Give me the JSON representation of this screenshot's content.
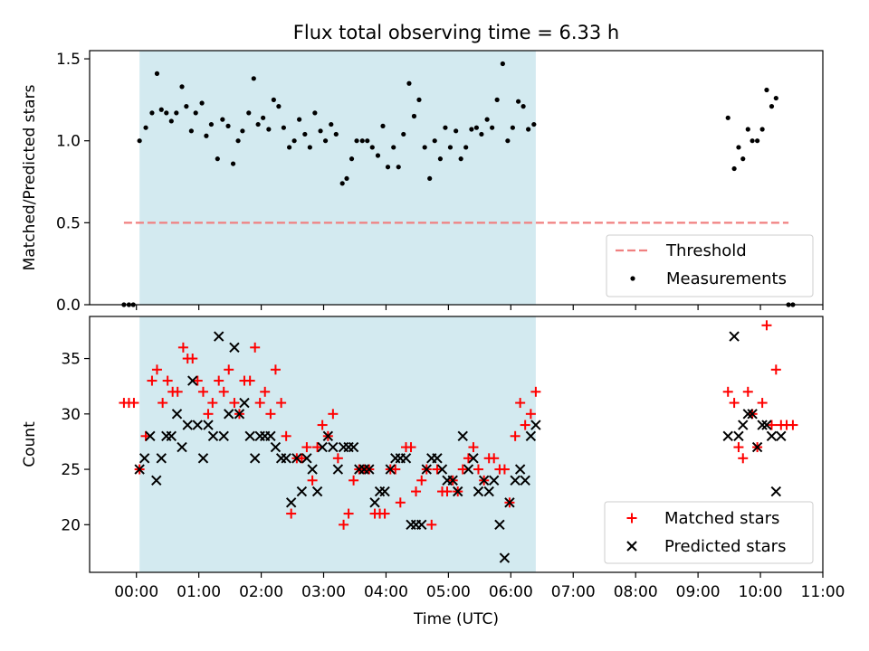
{
  "chart_data": {
    "title": "Flux total observing time = 6.33 h",
    "xlabel": "Time (UTC)",
    "x_unit": "hours (UTC)",
    "xlim": [
      -0.75,
      11.0
    ],
    "x_ticks": [
      {
        "value": 0,
        "label": "00:00"
      },
      {
        "value": 1,
        "label": "01:00"
      },
      {
        "value": 2,
        "label": "02:00"
      },
      {
        "value": 3,
        "label": "03:00"
      },
      {
        "value": 4,
        "label": "04:00"
      },
      {
        "value": 5,
        "label": "05:00"
      },
      {
        "value": 6,
        "label": "06:00"
      },
      {
        "value": 7,
        "label": "07:00"
      },
      {
        "value": 8,
        "label": "08:00"
      },
      {
        "value": 9,
        "label": "09:00"
      },
      {
        "value": 10,
        "label": "10:00"
      },
      {
        "value": 11,
        "label": "11:00"
      }
    ],
    "observing_window": {
      "start": 0.05,
      "end": 6.4,
      "color": "#d3eaf0"
    },
    "panels": [
      {
        "type": "scatter",
        "ylabel": "Matched/Predicted stars",
        "ylim": [
          0,
          1.55
        ],
        "y_ticks": [
          {
            "value": 0,
            "label": "0.0"
          },
          {
            "value": 0.5,
            "label": "0.5"
          },
          {
            "value": 1.0,
            "label": "1.0"
          },
          {
            "value": 1.5,
            "label": "1.5"
          }
        ],
        "threshold": {
          "name": "Threshold",
          "value": 0.5,
          "x_range": [
            -0.2,
            10.45
          ],
          "color": "#f08080"
        },
        "legend": {
          "position": "lower-right",
          "entries": [
            "Threshold",
            "Measurements"
          ]
        },
        "series": [
          {
            "name": "Measurements",
            "marker": "dot",
            "color": "#000000",
            "x": [
              -0.2,
              -0.12,
              -0.05,
              0.05,
              0.15,
              0.25,
              0.33,
              0.4,
              0.48,
              0.56,
              0.64,
              0.73,
              0.8,
              0.88,
              0.95,
              1.05,
              1.12,
              1.2,
              1.3,
              1.38,
              1.47,
              1.55,
              1.63,
              1.7,
              1.8,
              1.88,
              1.95,
              2.03,
              2.12,
              2.2,
              2.28,
              2.36,
              2.45,
              2.53,
              2.61,
              2.7,
              2.78,
              2.86,
              2.95,
              3.03,
              3.12,
              3.2,
              3.3,
              3.37,
              3.45,
              3.53,
              3.62,
              3.7,
              3.78,
              3.87,
              3.95,
              4.03,
              4.12,
              4.2,
              4.28,
              4.37,
              4.45,
              4.53,
              4.62,
              4.7,
              4.78,
              4.87,
              4.95,
              5.03,
              5.12,
              5.2,
              5.28,
              5.37,
              5.45,
              5.53,
              5.62,
              5.7,
              5.78,
              5.87,
              5.95,
              6.03,
              6.12,
              6.2,
              6.28,
              6.37,
              9.48,
              9.58,
              9.65,
              9.72,
              9.8,
              9.87,
              9.95,
              10.03,
              10.1,
              10.18,
              10.25,
              10.45,
              10.52
            ],
            "y": [
              0.0,
              0.0,
              0.0,
              1.0,
              1.08,
              1.17,
              1.41,
              1.19,
              1.17,
              1.12,
              1.17,
              1.33,
              1.21,
              1.06,
              1.17,
              1.23,
              1.03,
              1.1,
              0.89,
              1.13,
              1.09,
              0.86,
              1.0,
              1.06,
              1.17,
              1.38,
              1.1,
              1.14,
              1.07,
              1.25,
              1.21,
              1.08,
              0.96,
              1.0,
              1.13,
              1.04,
              0.96,
              1.17,
              1.06,
              1.0,
              1.1,
              1.04,
              0.74,
              0.77,
              0.89,
              1.0,
              1.0,
              1.0,
              0.96,
              0.91,
              1.09,
              0.84,
              0.96,
              0.84,
              1.04,
              1.35,
              1.15,
              1.25,
              0.96,
              0.77,
              1.0,
              0.89,
              1.08,
              0.96,
              1.06,
              0.89,
              0.96,
              1.07,
              1.08,
              1.04,
              1.13,
              1.08,
              1.25,
              1.47,
              1.0,
              1.08,
              1.24,
              1.21,
              1.07,
              1.1,
              1.14,
              0.83,
              0.96,
              0.89,
              1.07,
              1.0,
              1.0,
              1.07,
              1.31,
              1.21,
              1.26,
              0.0,
              0.0
            ]
          }
        ]
      },
      {
        "type": "scatter",
        "ylabel": "Count",
        "ylim": [
          15.7,
          38.8
        ],
        "y_ticks": [
          {
            "value": 20,
            "label": "20"
          },
          {
            "value": 25,
            "label": "25"
          },
          {
            "value": 30,
            "label": "30"
          },
          {
            "value": 35,
            "label": "35"
          }
        ],
        "legend": {
          "position": "lower-right",
          "entries": [
            "Matched stars",
            "Predicted stars"
          ]
        },
        "series": [
          {
            "name": "Matched stars",
            "marker": "plus",
            "color": "#ff0000",
            "x": [
              -0.2,
              -0.12,
              -0.04,
              0.05,
              0.15,
              0.25,
              0.33,
              0.42,
              0.5,
              0.58,
              0.66,
              0.75,
              0.82,
              0.9,
              0.98,
              1.07,
              1.15,
              1.22,
              1.32,
              1.4,
              1.48,
              1.57,
              1.65,
              1.73,
              1.82,
              1.9,
              1.98,
              2.06,
              2.15,
              2.23,
              2.32,
              2.4,
              2.48,
              2.57,
              2.65,
              2.73,
              2.82,
              2.9,
              2.98,
              3.07,
              3.15,
              3.23,
              3.32,
              3.4,
              3.48,
              3.57,
              3.65,
              3.73,
              3.82,
              3.9,
              3.98,
              4.07,
              4.15,
              4.23,
              4.32,
              4.4,
              4.48,
              4.57,
              4.65,
              4.73,
              4.82,
              4.9,
              4.98,
              5.07,
              5.15,
              5.23,
              5.32,
              5.4,
              5.48,
              5.57,
              5.65,
              5.73,
              5.82,
              5.9,
              5.98,
              6.07,
              6.15,
              6.23,
              6.32,
              6.4,
              9.48,
              9.58,
              9.65,
              9.72,
              9.8,
              9.87,
              9.95,
              10.03,
              10.1,
              10.18,
              10.25,
              10.33,
              10.42,
              10.52
            ],
            "y": [
              31,
              31,
              31,
              25,
              28,
              33,
              34,
              31,
              33,
              32,
              32,
              36,
              35,
              35,
              33,
              32,
              30,
              31,
              33,
              32,
              34,
              31,
              30,
              33,
              33,
              36,
              31,
              32,
              30,
              34,
              31,
              28,
              21,
              26,
              26,
              27,
              24,
              27,
              29,
              28,
              30,
              26,
              20,
              21,
              24,
              25,
              25,
              25,
              21,
              21,
              21,
              25,
              25,
              22,
              27,
              27,
              23,
              24,
              25,
              20,
              25,
              23,
              23,
              24,
              23,
              25,
              26,
              27,
              25,
              24,
              26,
              26,
              25,
              25,
              22,
              28,
              31,
              29,
              30,
              32,
              32,
              31,
              27,
              26,
              32,
              30,
              27,
              31,
              38,
              29,
              34,
              29,
              29,
              29
            ]
          },
          {
            "name": "Predicted stars",
            "marker": "x",
            "color": "#000000",
            "x": [
              0.05,
              0.13,
              0.22,
              0.32,
              0.4,
              0.48,
              0.56,
              0.65,
              0.73,
              0.82,
              0.9,
              0.98,
              1.07,
              1.15,
              1.23,
              1.32,
              1.4,
              1.48,
              1.57,
              1.65,
              1.73,
              1.82,
              1.9,
              1.98,
              2.06,
              2.15,
              2.23,
              2.32,
              2.4,
              2.48,
              2.57,
              2.65,
              2.73,
              2.82,
              2.9,
              2.98,
              3.07,
              3.15,
              3.23,
              3.32,
              3.4,
              3.48,
              3.57,
              3.65,
              3.73,
              3.82,
              3.9,
              3.98,
              4.07,
              4.15,
              4.23,
              4.32,
              4.4,
              4.48,
              4.57,
              4.65,
              4.73,
              4.82,
              4.9,
              4.98,
              5.07,
              5.15,
              5.23,
              5.32,
              5.4,
              5.48,
              5.57,
              5.65,
              5.73,
              5.82,
              5.9,
              5.98,
              6.07,
              6.15,
              6.23,
              6.32,
              6.4,
              9.48,
              9.58,
              9.65,
              9.72,
              9.8,
              9.87,
              9.95,
              10.03,
              10.1,
              10.18,
              10.25,
              10.33
            ],
            "y": [
              25,
              26,
              28,
              24,
              26,
              28,
              28,
              30,
              27,
              29,
              33,
              29,
              26,
              29,
              28,
              37,
              28,
              30,
              36,
              30,
              31,
              28,
              26,
              28,
              28,
              28,
              27,
              26,
              26,
              22,
              26,
              23,
              26,
              25,
              23,
              27,
              28,
              27,
              25,
              27,
              27,
              27,
              25,
              25,
              25,
              22,
              23,
              23,
              25,
              26,
              26,
              26,
              20,
              20,
              20,
              25,
              26,
              26,
              25,
              24,
              24,
              23,
              28,
              25,
              26,
              23,
              24,
              23,
              24,
              20,
              17,
              22,
              24,
              25,
              24,
              28,
              29,
              28,
              37,
              28,
              29,
              30,
              30,
              27,
              29,
              29,
              28,
              23,
              28
            ]
          }
        ]
      }
    ]
  }
}
